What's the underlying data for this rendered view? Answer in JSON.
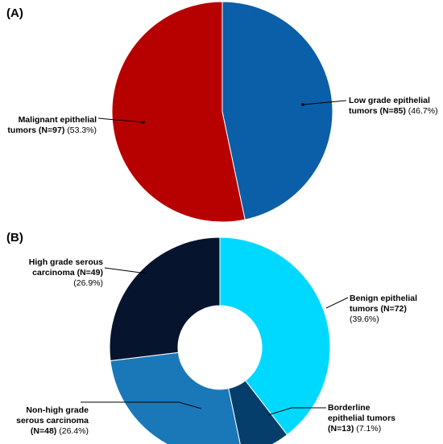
{
  "chart_data": [
    {
      "type": "pie",
      "panel_label": "(A)",
      "title": "",
      "colors": [
        "#0b5ea8",
        "#b70000"
      ],
      "slices": [
        {
          "lines": [
            {
              "bold": "Low grade epithelial",
              "rest": ""
            },
            {
              "bold": "tumors (N=85)",
              "rest": " (46.7%)"
            }
          ],
          "n": 85,
          "percent": 46.7
        },
        {
          "lines": [
            {
              "bold": "Malignant epithelial",
              "rest": ""
            },
            {
              "bold": "tumors (N=97)",
              "rest": " (53.3%)"
            }
          ],
          "n": 97,
          "percent": 53.3
        }
      ]
    },
    {
      "type": "pie",
      "variant": "donut",
      "panel_label": "(B)",
      "title": "",
      "colors": [
        "#00d9ff",
        "#063e6b",
        "#1a78b8",
        "#06142e"
      ],
      "slices": [
        {
          "lines": [
            {
              "bold": "Benign epithelial",
              "rest": ""
            },
            {
              "bold": "tumors (N=72)",
              "rest": ""
            },
            {
              "bold": "",
              "rest": "(39.6%)"
            }
          ],
          "n": 72,
          "percent": 39.6
        },
        {
          "lines": [
            {
              "bold": "Borderline",
              "rest": ""
            },
            {
              "bold": "epithelial tumors",
              "rest": ""
            },
            {
              "bold": "(N=13)",
              "rest": " (7.1%)"
            }
          ],
          "n": 13,
          "percent": 7.1
        },
        {
          "lines": [
            {
              "bold": "Non-high grade",
              "rest": ""
            },
            {
              "bold": "serous carcinoma",
              "rest": ""
            },
            {
              "bold": "(N=48)",
              "rest": " (26.4%)"
            }
          ],
          "n": 48,
          "percent": 26.4
        },
        {
          "lines": [
            {
              "bold": "High grade serous",
              "rest": ""
            },
            {
              "bold": "carcinoma (N=49)",
              "rest": ""
            },
            {
              "bold": "",
              "rest": "(26.9%)"
            }
          ],
          "n": 49,
          "percent": 26.9
        }
      ]
    }
  ]
}
